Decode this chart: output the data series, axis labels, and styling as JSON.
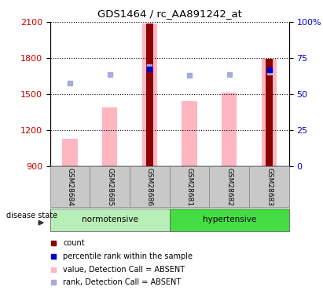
{
  "title": "GDS1464 / rc_AA891242_at",
  "samples": [
    "GSM28684",
    "GSM28685",
    "GSM28686",
    "GSM28681",
    "GSM28682",
    "GSM28683"
  ],
  "ylim_left": [
    900,
    2100
  ],
  "ylim_right": [
    0,
    100
  ],
  "yticks_left": [
    900,
    1200,
    1500,
    1800,
    2100
  ],
  "yticks_right": [
    0,
    25,
    50,
    75,
    100
  ],
  "bar_values_pink": [
    1130,
    1390,
    2090,
    1440,
    1510,
    1795
  ],
  "bar_values_red": [
    900,
    900,
    2090,
    900,
    900,
    1795
  ],
  "rank_markers": [
    1590,
    1660,
    1730,
    1655,
    1660,
    1680
  ],
  "percentile_markers": [
    null,
    null,
    1710,
    null,
    null,
    1700
  ],
  "color_red": "#8B0000",
  "color_pink": "#FFB6C1",
  "color_blue_dark": "#0000CC",
  "color_blue_light": "#AAAADD",
  "left_label_color": "#CC0000",
  "right_label_color": "#0000CC",
  "normotensive_color": "#B8EEB8",
  "hypertensive_color": "#44DD44",
  "sample_box_color": "#C8C8C8",
  "legend_items": [
    [
      "#8B0000",
      "count"
    ],
    [
      "#0000CC",
      "percentile rank within the sample"
    ],
    [
      "#FFB6C1",
      "value, Detection Call = ABSENT"
    ],
    [
      "#AAAADD",
      "rank, Detection Call = ABSENT"
    ]
  ]
}
